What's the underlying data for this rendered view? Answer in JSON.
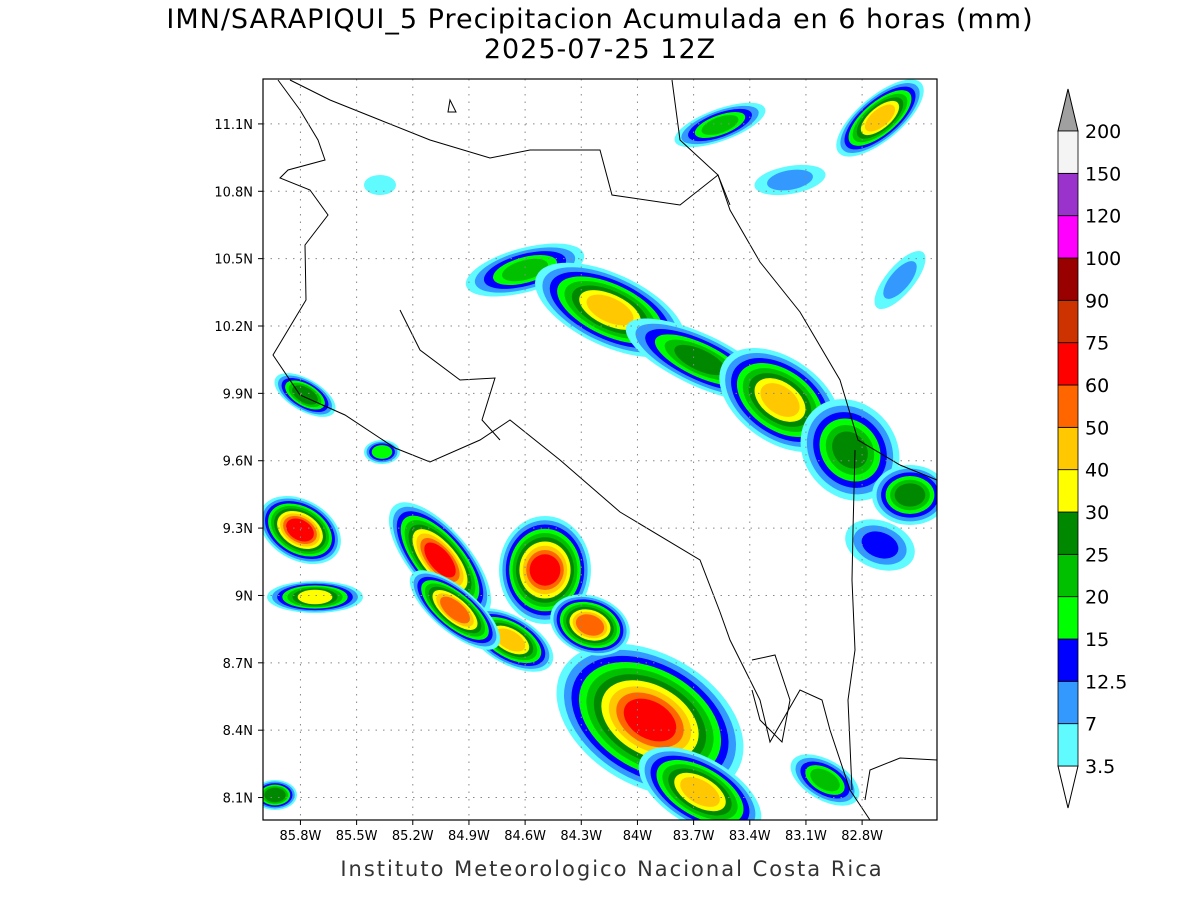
{
  "title": "IMN/SARAPIQUI_5 Precipitacion Acumulada en 6 horas (mm)",
  "subtitle": "2025-07-25 12Z",
  "map": {
    "xlim": [
      -86.0,
      -82.4
    ],
    "ylim": [
      8.0,
      11.3
    ],
    "lat_ticks": [
      {
        "value": 11.1,
        "label": "11.1N"
      },
      {
        "value": 10.8,
        "label": "10.8N"
      },
      {
        "value": 10.5,
        "label": "10.5N"
      },
      {
        "value": 10.2,
        "label": "10.2N"
      },
      {
        "value": 9.9,
        "label": "9.9N"
      },
      {
        "value": 9.6,
        "label": "9.6N"
      },
      {
        "value": 9.3,
        "label": "9.3N"
      },
      {
        "value": 9,
        "label": "9N"
      },
      {
        "value": 8.7,
        "label": "8.7N"
      },
      {
        "value": 8.4,
        "label": "8.4N"
      },
      {
        "value": 8.1,
        "label": "8.1N"
      }
    ],
    "lon_ticks": [
      {
        "value": -85.8,
        "label": "85.8W"
      },
      {
        "value": -85.5,
        "label": "85.5W"
      },
      {
        "value": -85.2,
        "label": "85.2W"
      },
      {
        "value": -84.9,
        "label": "84.9W"
      },
      {
        "value": -84.6,
        "label": "84.6W"
      },
      {
        "value": -84.3,
        "label": "84.3W"
      },
      {
        "value": -84,
        "label": "84W"
      },
      {
        "value": -83.7,
        "label": "83.7W"
      },
      {
        "value": -83.4,
        "label": "83.4W"
      },
      {
        "value": -83.1,
        "label": "83.1W"
      },
      {
        "value": -82.8,
        "label": "82.8W"
      }
    ]
  },
  "colorbar": {
    "levels": [
      3.5,
      7,
      12.5,
      15,
      20,
      25,
      30,
      40,
      50,
      60,
      75,
      90,
      100,
      120,
      150,
      200
    ],
    "colors": [
      "#5ffbff",
      "#3399ff",
      "#0000ff",
      "#00ff00",
      "#00c000",
      "#008800",
      "#ffff00",
      "#ffc800",
      "#ff6600",
      "#ff0000",
      "#cc3300",
      "#990000",
      "#ff00ff",
      "#9933cc",
      "#f4f4f4"
    ],
    "under_color": "#ffffff",
    "over_color": "#a0a0a0"
  },
  "footer": "Instituto Meteorologico Nacional Costa Rica"
}
